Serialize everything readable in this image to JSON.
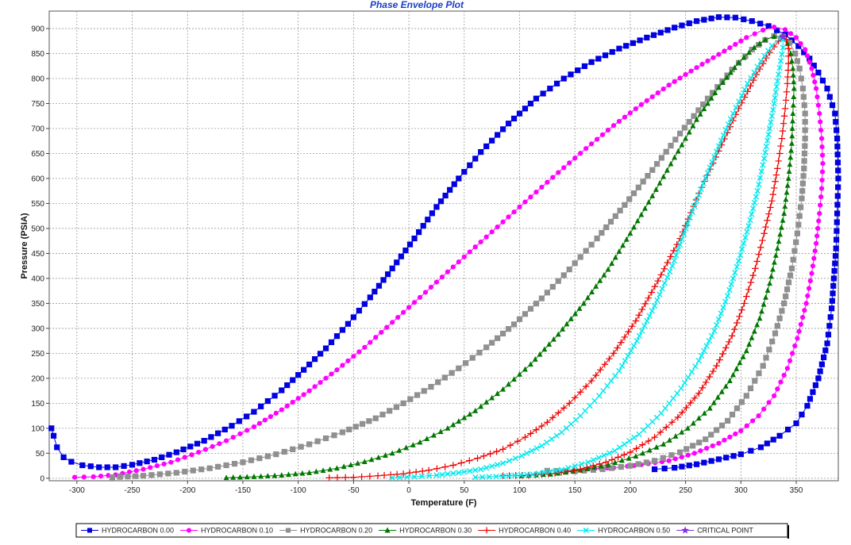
{
  "chart_data": {
    "type": "scatter",
    "title": "Phase Envelope Plot",
    "xlabel": "Temperature (F)",
    "ylabel": "Pressure (PSIA)",
    "xlim": [
      -325,
      388
    ],
    "ylim": [
      -5,
      935
    ],
    "xticks": [
      -300,
      -250,
      -200,
      -150,
      -100,
      -50,
      0,
      50,
      100,
      150,
      200,
      250,
      300,
      350
    ],
    "yticks": [
      0,
      50,
      100,
      150,
      200,
      250,
      300,
      350,
      400,
      450,
      500,
      550,
      600,
      650,
      700,
      750,
      800,
      850,
      900
    ],
    "grid": true,
    "legend_position": "bottom",
    "series": [
      {
        "name": "HYDROCARBON 0.00",
        "color": "#0000e0",
        "marker": "square",
        "bubble": [
          [
            -323,
            100
          ],
          [
            -321,
            85
          ],
          [
            -318,
            62
          ],
          [
            -312,
            42
          ],
          [
            -305,
            33
          ],
          [
            -295,
            26
          ],
          [
            -280,
            22
          ],
          [
            -265,
            22
          ],
          [
            -250,
            27
          ],
          [
            -230,
            37
          ],
          [
            -210,
            52
          ],
          [
            -185,
            75
          ],
          [
            -160,
            105
          ],
          [
            -140,
            133
          ],
          [
            -115,
            176
          ],
          [
            -95,
            217
          ],
          [
            -75,
            260
          ],
          [
            -55,
            309
          ],
          [
            -35,
            362
          ],
          [
            -15,
            420
          ],
          [
            5,
            480
          ],
          [
            25,
            543
          ],
          [
            45,
            600
          ],
          [
            65,
            653
          ],
          [
            90,
            710
          ],
          [
            115,
            760
          ],
          [
            140,
            800
          ],
          [
            165,
            833
          ],
          [
            190,
            860
          ],
          [
            215,
            882
          ],
          [
            240,
            902
          ],
          [
            260,
            915
          ],
          [
            280,
            923
          ],
          [
            295,
            922
          ],
          [
            310,
            915
          ]
        ],
        "dew": [
          [
            310,
            915
          ],
          [
            325,
            905
          ],
          [
            340,
            888
          ],
          [
            352,
            865
          ],
          [
            362,
            840
          ],
          [
            370,
            812
          ],
          [
            378,
            780
          ],
          [
            385,
            730
          ],
          [
            387,
            680
          ],
          [
            388,
            600
          ],
          [
            387,
            530
          ],
          [
            386,
            460
          ],
          [
            384,
            400
          ],
          [
            382,
            340
          ],
          [
            378,
            270
          ],
          [
            370,
            200
          ],
          [
            360,
            145
          ],
          [
            350,
            110
          ],
          [
            335,
            85
          ],
          [
            318,
            62
          ],
          [
            300,
            48
          ],
          [
            280,
            38
          ],
          [
            260,
            28
          ],
          [
            240,
            21
          ],
          [
            222,
            18
          ]
        ]
      },
      {
        "name": "HYDROCARBON 0.10",
        "color": "#ff00ff",
        "marker": "circle",
        "bubble": [
          [
            -302,
            2
          ],
          [
            -285,
            3
          ],
          [
            -265,
            7
          ],
          [
            -240,
            18
          ],
          [
            -215,
            32
          ],
          [
            -190,
            52
          ],
          [
            -165,
            75
          ],
          [
            -140,
            103
          ],
          [
            -115,
            137
          ],
          [
            -90,
            175
          ],
          [
            -65,
            217
          ],
          [
            -40,
            262
          ],
          [
            -15,
            312
          ],
          [
            10,
            362
          ],
          [
            35,
            413
          ],
          [
            60,
            463
          ],
          [
            85,
            513
          ],
          [
            110,
            563
          ],
          [
            135,
            612
          ],
          [
            160,
            660
          ],
          [
            185,
            706
          ],
          [
            210,
            748
          ],
          [
            235,
            787
          ],
          [
            260,
            822
          ],
          [
            285,
            855
          ],
          [
            305,
            882
          ],
          [
            320,
            897
          ],
          [
            330,
            903
          ]
        ],
        "dew": [
          [
            330,
            903
          ],
          [
            340,
            898
          ],
          [
            350,
            882
          ],
          [
            358,
            858
          ],
          [
            364,
            820
          ],
          [
            368,
            780
          ],
          [
            371,
            730
          ],
          [
            373,
            680
          ],
          [
            374,
            630
          ],
          [
            373,
            580
          ],
          [
            371,
            530
          ],
          [
            368,
            470
          ],
          [
            364,
            410
          ],
          [
            359,
            350
          ],
          [
            351,
            280
          ],
          [
            342,
            220
          ],
          [
            330,
            165
          ],
          [
            316,
            125
          ],
          [
            300,
            95
          ],
          [
            280,
            70
          ],
          [
            258,
            50
          ],
          [
            235,
            35
          ],
          [
            210,
            27
          ],
          [
            185,
            21
          ],
          [
            162,
            19
          ]
        ]
      },
      {
        "name": "HYDROCARBON 0.20",
        "color": "#909090",
        "marker": "square",
        "bubble": [
          [
            -268,
            2
          ],
          [
            -240,
            5
          ],
          [
            -210,
            11
          ],
          [
            -180,
            20
          ],
          [
            -150,
            32
          ],
          [
            -120,
            48
          ],
          [
            -90,
            68
          ],
          [
            -60,
            92
          ],
          [
            -30,
            120
          ],
          [
            -5,
            150
          ],
          [
            20,
            183
          ],
          [
            45,
            220
          ],
          [
            70,
            262
          ],
          [
            95,
            308
          ],
          [
            120,
            360
          ],
          [
            145,
            418
          ],
          [
            170,
            480
          ],
          [
            195,
            547
          ],
          [
            220,
            617
          ],
          [
            245,
            690
          ],
          [
            270,
            760
          ],
          [
            292,
            818
          ],
          [
            310,
            858
          ],
          [
            322,
            877
          ],
          [
            330,
            885
          ]
        ],
        "dew": [
          [
            330,
            885
          ],
          [
            338,
            884
          ],
          [
            344,
            872
          ],
          [
            349,
            850
          ],
          [
            353,
            820
          ],
          [
            356,
            780
          ],
          [
            358,
            730
          ],
          [
            358,
            680
          ],
          [
            357,
            620
          ],
          [
            355,
            560
          ],
          [
            351,
            490
          ],
          [
            346,
            420
          ],
          [
            339,
            350
          ],
          [
            331,
            290
          ],
          [
            320,
            225
          ],
          [
            305,
            165
          ],
          [
            288,
            115
          ],
          [
            268,
            78
          ],
          [
            245,
            52
          ],
          [
            222,
            35
          ],
          [
            200,
            25
          ],
          [
            175,
            18
          ],
          [
            150,
            14
          ],
          [
            125,
            15
          ]
        ]
      },
      {
        "name": "HYDROCARBON 0.30",
        "color": "#007700",
        "marker": "triangle",
        "bubble": [
          [
            -165,
            1
          ],
          [
            -140,
            3
          ],
          [
            -115,
            6
          ],
          [
            -90,
            11
          ],
          [
            -65,
            20
          ],
          [
            -40,
            33
          ],
          [
            -15,
            50
          ],
          [
            10,
            72
          ],
          [
            35,
            100
          ],
          [
            60,
            135
          ],
          [
            85,
            178
          ],
          [
            110,
            228
          ],
          [
            135,
            288
          ],
          [
            158,
            350
          ],
          [
            180,
            418
          ],
          [
            200,
            490
          ],
          [
            220,
            565
          ],
          [
            240,
            642
          ],
          [
            260,
            718
          ],
          [
            280,
            782
          ],
          [
            298,
            832
          ],
          [
            312,
            862
          ],
          [
            322,
            878
          ],
          [
            330,
            884
          ]
        ],
        "dew": [
          [
            330,
            884
          ],
          [
            337,
            882
          ],
          [
            342,
            870
          ],
          [
            345,
            850
          ],
          [
            347,
            820
          ],
          [
            348,
            780
          ],
          [
            347,
            730
          ],
          [
            346,
            670
          ],
          [
            343,
            600
          ],
          [
            339,
            530
          ],
          [
            333,
            460
          ],
          [
            326,
            390
          ],
          [
            317,
            320
          ],
          [
            305,
            255
          ],
          [
            290,
            195
          ],
          [
            272,
            140
          ],
          [
            252,
            100
          ],
          [
            230,
            68
          ],
          [
            205,
            44
          ],
          [
            180,
            27
          ],
          [
            155,
            16
          ],
          [
            128,
            8
          ],
          [
            102,
            5
          ]
        ]
      },
      {
        "name": "HYDROCARBON 0.40",
        "color": "#ee0000",
        "marker": "plus",
        "bubble": [
          [
            -72,
            1
          ],
          [
            -50,
            2
          ],
          [
            -28,
            5
          ],
          [
            -5,
            9
          ],
          [
            18,
            16
          ],
          [
            40,
            26
          ],
          [
            62,
            40
          ],
          [
            85,
            58
          ],
          [
            105,
            82
          ],
          [
            125,
            112
          ],
          [
            145,
            150
          ],
          [
            165,
            195
          ],
          [
            185,
            250
          ],
          [
            205,
            315
          ],
          [
            225,
            395
          ],
          [
            245,
            480
          ],
          [
            262,
            570
          ],
          [
            280,
            655
          ],
          [
            298,
            740
          ],
          [
            314,
            808
          ],
          [
            326,
            852
          ],
          [
            334,
            875
          ],
          [
            338,
            884
          ]
        ],
        "dew": [
          [
            338,
            884
          ],
          [
            341,
            878
          ],
          [
            343,
            860
          ],
          [
            343,
            830
          ],
          [
            342,
            790
          ],
          [
            340,
            740
          ],
          [
            337,
            680
          ],
          [
            333,
            620
          ],
          [
            328,
            555
          ],
          [
            321,
            490
          ],
          [
            313,
            420
          ],
          [
            303,
            350
          ],
          [
            292,
            285
          ],
          [
            278,
            225
          ],
          [
            262,
            170
          ],
          [
            243,
            122
          ],
          [
            222,
            82
          ],
          [
            200,
            52
          ],
          [
            178,
            32
          ],
          [
            155,
            18
          ],
          [
            132,
            10
          ],
          [
            108,
            6
          ],
          [
            85,
            5
          ]
        ]
      },
      {
        "name": "HYDROCARBON 0.50",
        "color": "#00e8ee",
        "marker": "x",
        "bubble": [
          [
            -15,
            1
          ],
          [
            5,
            3
          ],
          [
            25,
            6
          ],
          [
            45,
            11
          ],
          [
            65,
            18
          ],
          [
            85,
            30
          ],
          [
            102,
            45
          ],
          [
            120,
            65
          ],
          [
            138,
            92
          ],
          [
            155,
            125
          ],
          [
            172,
            165
          ],
          [
            190,
            215
          ],
          [
            206,
            275
          ],
          [
            222,
            345
          ],
          [
            238,
            425
          ],
          [
            252,
            510
          ],
          [
            266,
            590
          ],
          [
            280,
            665
          ],
          [
            293,
            730
          ],
          [
            306,
            790
          ],
          [
            318,
            835
          ],
          [
            328,
            866
          ],
          [
            335,
            880
          ]
        ],
        "dew": [
          [
            335,
            880
          ],
          [
            338,
            878
          ],
          [
            338,
            862
          ],
          [
            336,
            835
          ],
          [
            333,
            795
          ],
          [
            330,
            750
          ],
          [
            326,
            700
          ],
          [
            321,
            640
          ],
          [
            315,
            575
          ],
          [
            307,
            505
          ],
          [
            298,
            435
          ],
          [
            288,
            365
          ],
          [
            276,
            295
          ],
          [
            262,
            235
          ],
          [
            246,
            180
          ],
          [
            228,
            130
          ],
          [
            208,
            88
          ],
          [
            186,
            55
          ],
          [
            162,
            32
          ],
          [
            138,
            17
          ],
          [
            112,
            8
          ],
          [
            85,
            4
          ],
          [
            60,
            2
          ]
        ]
      },
      {
        "name": "CRITICAL POINT",
        "color": "#8a2be2",
        "marker": "star",
        "points": [
          [
            338,
            884
          ]
        ]
      }
    ]
  }
}
